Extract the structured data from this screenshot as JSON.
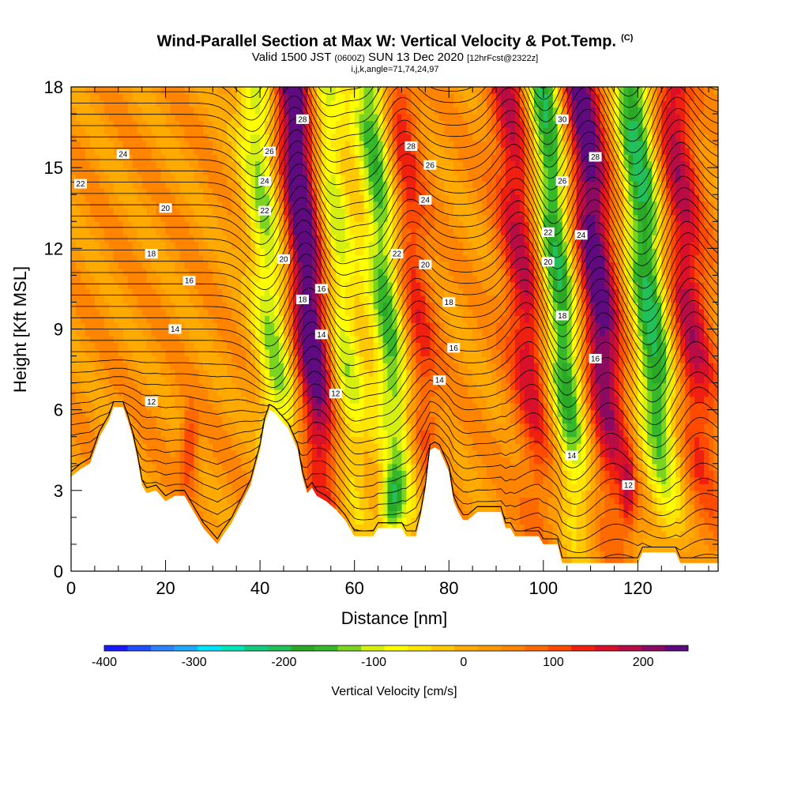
{
  "title": {
    "main": "Wind-Parallel Section at Max W: Vertical Velocity & Pot.Temp.",
    "copyright": "(C)",
    "valid_prefix": "Valid 1500 JST",
    "valid_utc": "(0600Z)",
    "valid_date": "SUN 13 Dec 2020",
    "forecast": "[12hrFcst@2322z]",
    "indices": "i,j,k,angle=71,74,24,97"
  },
  "chart_data": {
    "type": "heatmap",
    "xlabel": "Distance [nm]",
    "ylabel": "Height [Kft MSL]",
    "xlim": [
      0,
      137
    ],
    "ylim": [
      0,
      18
    ],
    "x_ticks": [
      "0",
      "20",
      "40",
      "60",
      "80",
      "100",
      "120"
    ],
    "y_ticks": [
      "0",
      "3",
      "6",
      "9",
      "12",
      "15",
      "18"
    ],
    "colorbar": {
      "title": "Vertical Velocity [cm/s]",
      "ticks": [
        "-400",
        "-300",
        "-200",
        "-100",
        "0",
        "100",
        "200"
      ],
      "min": -400,
      "max": 250,
      "colors": [
        "#1a1aff",
        "#1f4fff",
        "#2f82ff",
        "#20aaff",
        "#00e5ff",
        "#00e6bb",
        "#11cc80",
        "#22c05a",
        "#2aa826",
        "#35b82a",
        "#7ad420",
        "#d5ef10",
        "#ffff00",
        "#ffe600",
        "#ffc800",
        "#ffaa00",
        "#ff9a00",
        "#ff8400",
        "#ff6a00",
        "#ff4a00",
        "#f02010",
        "#d8102a",
        "#b80c45",
        "#8c0a60",
        "#600a80"
      ]
    },
    "updraft_cores_nm": [
      51,
      72,
      97,
      112,
      131
    ],
    "downdraft_cores_nm": [
      43,
      57,
      68,
      104,
      123
    ],
    "contour_labels": [
      {
        "value": "24",
        "x": 11,
        "y": 15.5
      },
      {
        "value": "22",
        "x": 2,
        "y": 14.4
      },
      {
        "value": "20",
        "x": 20,
        "y": 13.5
      },
      {
        "value": "18",
        "x": 17,
        "y": 11.8
      },
      {
        "value": "16",
        "x": 25,
        "y": 10.8
      },
      {
        "value": "14",
        "x": 22,
        "y": 9.0
      },
      {
        "value": "12",
        "x": 17,
        "y": 6.3
      },
      {
        "value": "28",
        "x": 49,
        "y": 16.8
      },
      {
        "value": "26",
        "x": 42,
        "y": 15.6
      },
      {
        "value": "24",
        "x": 41,
        "y": 14.5
      },
      {
        "value": "22",
        "x": 41,
        "y": 13.4
      },
      {
        "value": "20",
        "x": 45,
        "y": 11.6
      },
      {
        "value": "18",
        "x": 49,
        "y": 10.1
      },
      {
        "value": "16",
        "x": 53,
        "y": 10.5
      },
      {
        "value": "14",
        "x": 53,
        "y": 8.8
      },
      {
        "value": "12",
        "x": 56,
        "y": 6.6
      },
      {
        "value": "28",
        "x": 72,
        "y": 15.8
      },
      {
        "value": "26",
        "x": 76,
        "y": 15.1
      },
      {
        "value": "24",
        "x": 75,
        "y": 13.8
      },
      {
        "value": "22",
        "x": 69,
        "y": 11.8
      },
      {
        "value": "20",
        "x": 75,
        "y": 11.4
      },
      {
        "value": "18",
        "x": 80,
        "y": 10.0
      },
      {
        "value": "16",
        "x": 81,
        "y": 8.3
      },
      {
        "value": "14",
        "x": 78,
        "y": 7.1
      },
      {
        "value": "30",
        "x": 104,
        "y": 16.8
      },
      {
        "value": "28",
        "x": 111,
        "y": 15.4
      },
      {
        "value": "26",
        "x": 104,
        "y": 14.5
      },
      {
        "value": "22",
        "x": 101,
        "y": 12.6
      },
      {
        "value": "24",
        "x": 108,
        "y": 12.5
      },
      {
        "value": "20",
        "x": 101,
        "y": 11.5
      },
      {
        "value": "18",
        "x": 104,
        "y": 9.5
      },
      {
        "value": "16",
        "x": 111,
        "y": 7.9
      },
      {
        "value": "14",
        "x": 106,
        "y": 4.3
      },
      {
        "value": "12",
        "x": 118,
        "y": 3.2
      }
    ],
    "terrain_kft": [
      [
        0,
        3.5
      ],
      [
        2,
        3.8
      ],
      [
        4,
        4.0
      ],
      [
        5,
        4.5
      ],
      [
        6,
        5.0
      ],
      [
        8,
        5.6
      ],
      [
        9,
        6.1
      ],
      [
        11,
        6.1
      ],
      [
        12,
        5.6
      ],
      [
        13,
        5.0
      ],
      [
        14,
        4.2
      ],
      [
        15,
        3.2
      ],
      [
        16,
        2.9
      ],
      [
        18,
        3.0
      ],
      [
        20,
        2.6
      ],
      [
        22,
        2.8
      ],
      [
        24,
        2.8
      ],
      [
        26,
        2.2
      ],
      [
        28,
        1.6
      ],
      [
        30,
        1.2
      ],
      [
        31,
        1.0
      ],
      [
        32,
        1.3
      ],
      [
        34,
        1.8
      ],
      [
        36,
        2.5
      ],
      [
        38,
        3.2
      ],
      [
        40,
        4.5
      ],
      [
        41,
        5.5
      ],
      [
        42,
        6.0
      ],
      [
        43,
        5.9
      ],
      [
        45,
        5.5
      ],
      [
        46,
        5.3
      ],
      [
        47,
        4.9
      ],
      [
        48,
        4.5
      ],
      [
        49,
        3.5
      ],
      [
        50,
        2.9
      ],
      [
        51,
        3.1
      ],
      [
        52,
        2.8
      ],
      [
        54,
        2.6
      ],
      [
        56,
        2.3
      ],
      [
        58,
        1.9
      ],
      [
        59,
        1.6
      ],
      [
        60,
        1.3
      ],
      [
        64,
        1.3
      ],
      [
        65,
        1.6
      ],
      [
        70,
        1.6
      ],
      [
        71,
        1.3
      ],
      [
        73,
        1.3
      ],
      [
        74,
        2.0
      ],
      [
        75,
        3.0
      ],
      [
        76,
        4.5
      ],
      [
        77,
        4.6
      ],
      [
        78,
        4.5
      ],
      [
        79,
        4.1
      ],
      [
        80,
        3.7
      ],
      [
        81,
        2.6
      ],
      [
        82,
        2.2
      ],
      [
        83,
        1.9
      ],
      [
        84,
        1.9
      ],
      [
        86,
        2.2
      ],
      [
        91,
        2.2
      ],
      [
        92,
        1.6
      ],
      [
        93,
        1.6
      ],
      [
        94,
        1.3
      ],
      [
        99,
        1.3
      ],
      [
        100,
        1.0
      ],
      [
        103,
        1.0
      ],
      [
        104,
        0.3
      ],
      [
        120,
        0.3
      ],
      [
        121,
        0.7
      ],
      [
        128,
        0.7
      ],
      [
        129,
        0.3
      ],
      [
        137,
        0.3
      ]
    ]
  }
}
